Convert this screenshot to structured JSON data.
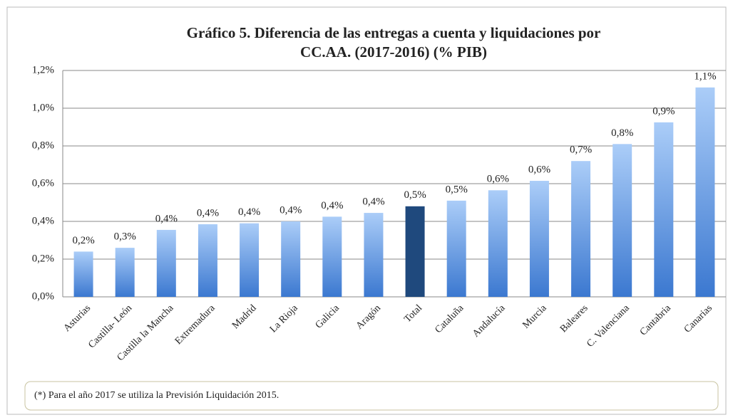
{
  "chart_data": {
    "type": "bar",
    "title": "Gráfico 5. Diferencia de las entregas a cuenta y liquidaciones por",
    "title_line2": "CC.AA. (2017-2016) (% PIB)",
    "categories": [
      "Asturias",
      "Castilla- León",
      "Castilla la Mancha",
      "Extremadura",
      "Madrid",
      "La Rioja",
      "Galicia",
      "Aragón",
      "Total",
      "Cataluña",
      "Andalucía",
      "Murcia",
      "Baleares",
      "C. Valenciana",
      "Cantabria",
      "Canarias"
    ],
    "values": [
      0.24,
      0.26,
      0.355,
      0.385,
      0.39,
      0.4,
      0.425,
      0.445,
      0.48,
      0.51,
      0.565,
      0.615,
      0.72,
      0.81,
      0.925,
      1.11
    ],
    "value_labels": [
      "0,2%",
      "0,3%",
      "0,4%",
      "0,4%",
      "0,4%",
      "0,4%",
      "0,4%",
      "0,4%",
      "0,5%",
      "0,5%",
      "0,6%",
      "0,6%",
      "0,7%",
      "0,8%",
      "0,9%",
      "1,1%"
    ],
    "colors": [
      [
        "#abcdf8",
        "#3b78d0"
      ],
      [
        "#abcdf8",
        "#3b78d0"
      ],
      [
        "#abcdf8",
        "#3b78d0"
      ],
      [
        "#abcdf8",
        "#3b78d0"
      ],
      [
        "#abcdf8",
        "#3b78d0"
      ],
      [
        "#abcdf8",
        "#3b78d0"
      ],
      [
        "#abcdf8",
        "#3b78d0"
      ],
      [
        "#abcdf8",
        "#3b78d0"
      ],
      [
        "#1f497d",
        "#1f497d"
      ],
      [
        "#abcdf8",
        "#3b78d0"
      ],
      [
        "#abcdf8",
        "#3b78d0"
      ],
      [
        "#abcdf8",
        "#3b78d0"
      ],
      [
        "#abcdf8",
        "#3b78d0"
      ],
      [
        "#abcdf8",
        "#3b78d0"
      ],
      [
        "#abcdf8",
        "#3b78d0"
      ],
      [
        "#abcdf8",
        "#3b78d0"
      ]
    ],
    "ylim": [
      0,
      1.2
    ],
    "yticks": [
      {
        "value": 0,
        "label": "0,0%"
      },
      {
        "value": 0.2,
        "label": "0,2%"
      },
      {
        "value": 0.4,
        "label": "0,4%"
      },
      {
        "value": 0.6,
        "label": "0,6%"
      },
      {
        "value": 0.8,
        "label": "0,8%"
      },
      {
        "value": 1.0,
        "label": "1,0%"
      },
      {
        "value": 1.2,
        "label": "1,2%"
      }
    ],
    "grid": true,
    "footnote": "(*) Para el año 2017 se utiliza la Previsión Liquidación 2015."
  }
}
